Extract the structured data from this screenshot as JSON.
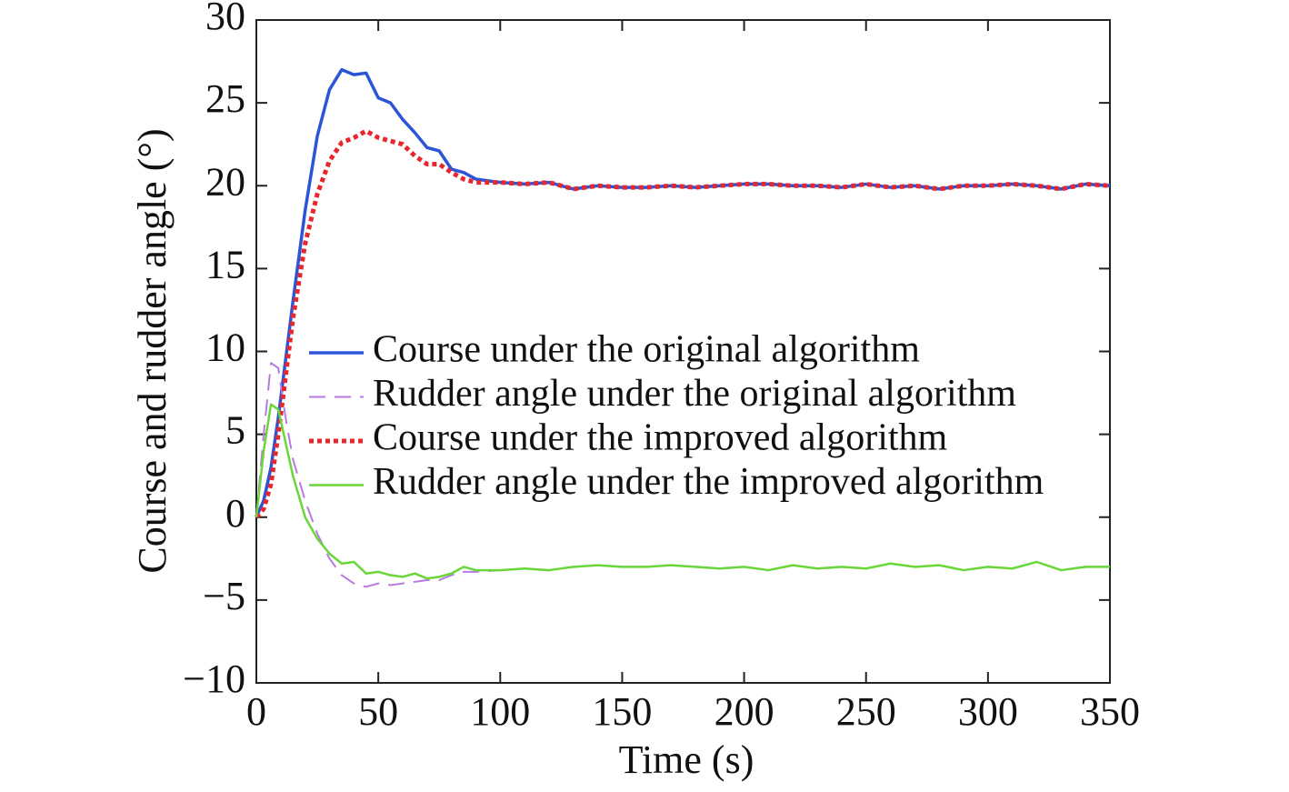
{
  "chart_data": {
    "type": "line",
    "xlabel": "Time (s)",
    "ylabel": "Course and rudder angle (°)",
    "x": [
      0,
      3,
      6,
      9,
      12,
      15,
      20,
      25,
      30,
      35,
      40,
      45,
      50,
      55,
      60,
      65,
      70,
      75,
      80,
      85,
      90,
      100,
      110,
      120,
      130,
      140,
      150,
      160,
      170,
      180,
      190,
      200,
      210,
      220,
      230,
      240,
      250,
      260,
      270,
      280,
      290,
      300,
      310,
      320,
      330,
      340,
      350
    ],
    "series": [
      {
        "name": "Course under the original algorithm",
        "color": "#2b55d6",
        "style": "solid",
        "linewidth": 3.5,
        "values": [
          0,
          1,
          3,
          6,
          9.5,
          13,
          18.5,
          23,
          25.8,
          27,
          26.7,
          26.8,
          25.3,
          25,
          24,
          23.2,
          22.3,
          22.1,
          21,
          20.8,
          20.4,
          20.2,
          20.1,
          20.2,
          19.8,
          20,
          19.9,
          19.9,
          20,
          19.9,
          20,
          20.1,
          20.1,
          20,
          20,
          19.9,
          20.1,
          19.9,
          20,
          19.8,
          20,
          20,
          20.1,
          20,
          19.8,
          20.1,
          20
        ]
      },
      {
        "name": "Rudder angle under the original algorithm",
        "color": "#b57be0",
        "style": "dashed",
        "linewidth": 2,
        "values": [
          0,
          5,
          9.3,
          9,
          6,
          3.5,
          1,
          -1,
          -2.5,
          -3.5,
          -4,
          -4.2,
          -4,
          -4.1,
          -4,
          -3.9,
          -3.8,
          -3.8,
          -3.5,
          -3.3,
          -3.3,
          -3.2,
          -3.1,
          -3.2,
          -3,
          -2.9,
          -3,
          -3,
          -2.9,
          -3,
          -3.1,
          -3,
          -3.2,
          -2.9,
          -3.1,
          -3,
          -3.1,
          -2.8,
          -3,
          -2.9,
          -3.2,
          -3,
          -3.1,
          -2.7,
          -3.2,
          -3,
          -3
        ]
      },
      {
        "name": "Course under the improved algorithm",
        "color": "#e8262e",
        "style": "dotted",
        "linewidth": 5,
        "values": [
          0,
          0.5,
          2,
          5,
          8.5,
          12,
          16.5,
          19.5,
          21.5,
          22.6,
          22.9,
          23.3,
          22.9,
          22.7,
          22.5,
          21.8,
          21.3,
          21.3,
          20.8,
          20.4,
          20.2,
          20.2,
          20.1,
          20.2,
          19.8,
          20,
          19.9,
          19.9,
          20,
          19.9,
          20,
          20.1,
          20.1,
          20,
          20,
          19.9,
          20.1,
          19.9,
          20,
          19.8,
          20,
          20,
          20.1,
          20,
          19.8,
          20.1,
          20
        ]
      },
      {
        "name": "Rudder angle under the improved algorithm",
        "color": "#6ad63a",
        "style": "solid",
        "linewidth": 2.5,
        "values": [
          0,
          4,
          6.8,
          6.5,
          4.5,
          2.5,
          0,
          -1.3,
          -2.2,
          -2.8,
          -2.7,
          -3.4,
          -3.3,
          -3.5,
          -3.6,
          -3.4,
          -3.7,
          -3.6,
          -3.4,
          -3,
          -3.2,
          -3.2,
          -3.1,
          -3.2,
          -3,
          -2.9,
          -3,
          -3,
          -2.9,
          -3,
          -3.1,
          -3,
          -3.2,
          -2.9,
          -3.1,
          -3,
          -3.1,
          -2.8,
          -3,
          -2.9,
          -3.2,
          -3,
          -3.1,
          -2.7,
          -3.2,
          -3,
          -3
        ]
      }
    ],
    "xlim": [
      0,
      350
    ],
    "xticks": [
      0,
      50,
      100,
      150,
      200,
      250,
      300,
      350
    ],
    "ylim": [
      -10,
      30
    ],
    "yticks": [
      {
        "value": -10,
        "label": "−10"
      },
      {
        "value": -5,
        "label": "−5"
      },
      0,
      5,
      10,
      15,
      20,
      25,
      30
    ],
    "grid": false,
    "legend": "center"
  }
}
